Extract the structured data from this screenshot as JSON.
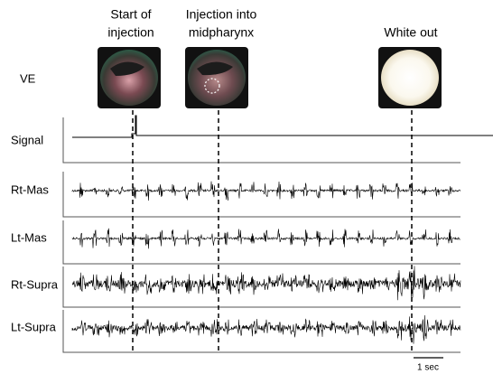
{
  "annotations": [
    {
      "lines": [
        "Start of",
        "injection"
      ]
    },
    {
      "lines": [
        "Injection into",
        "midpharynx"
      ]
    },
    {
      "lines": [
        "White out"
      ]
    }
  ],
  "rows": [
    "VE",
    "Signal",
    "Rt-Mas",
    "Lt-Mas",
    "Rt-Supra",
    "Lt-Supra"
  ],
  "scale_bar": "1 sec"
}
